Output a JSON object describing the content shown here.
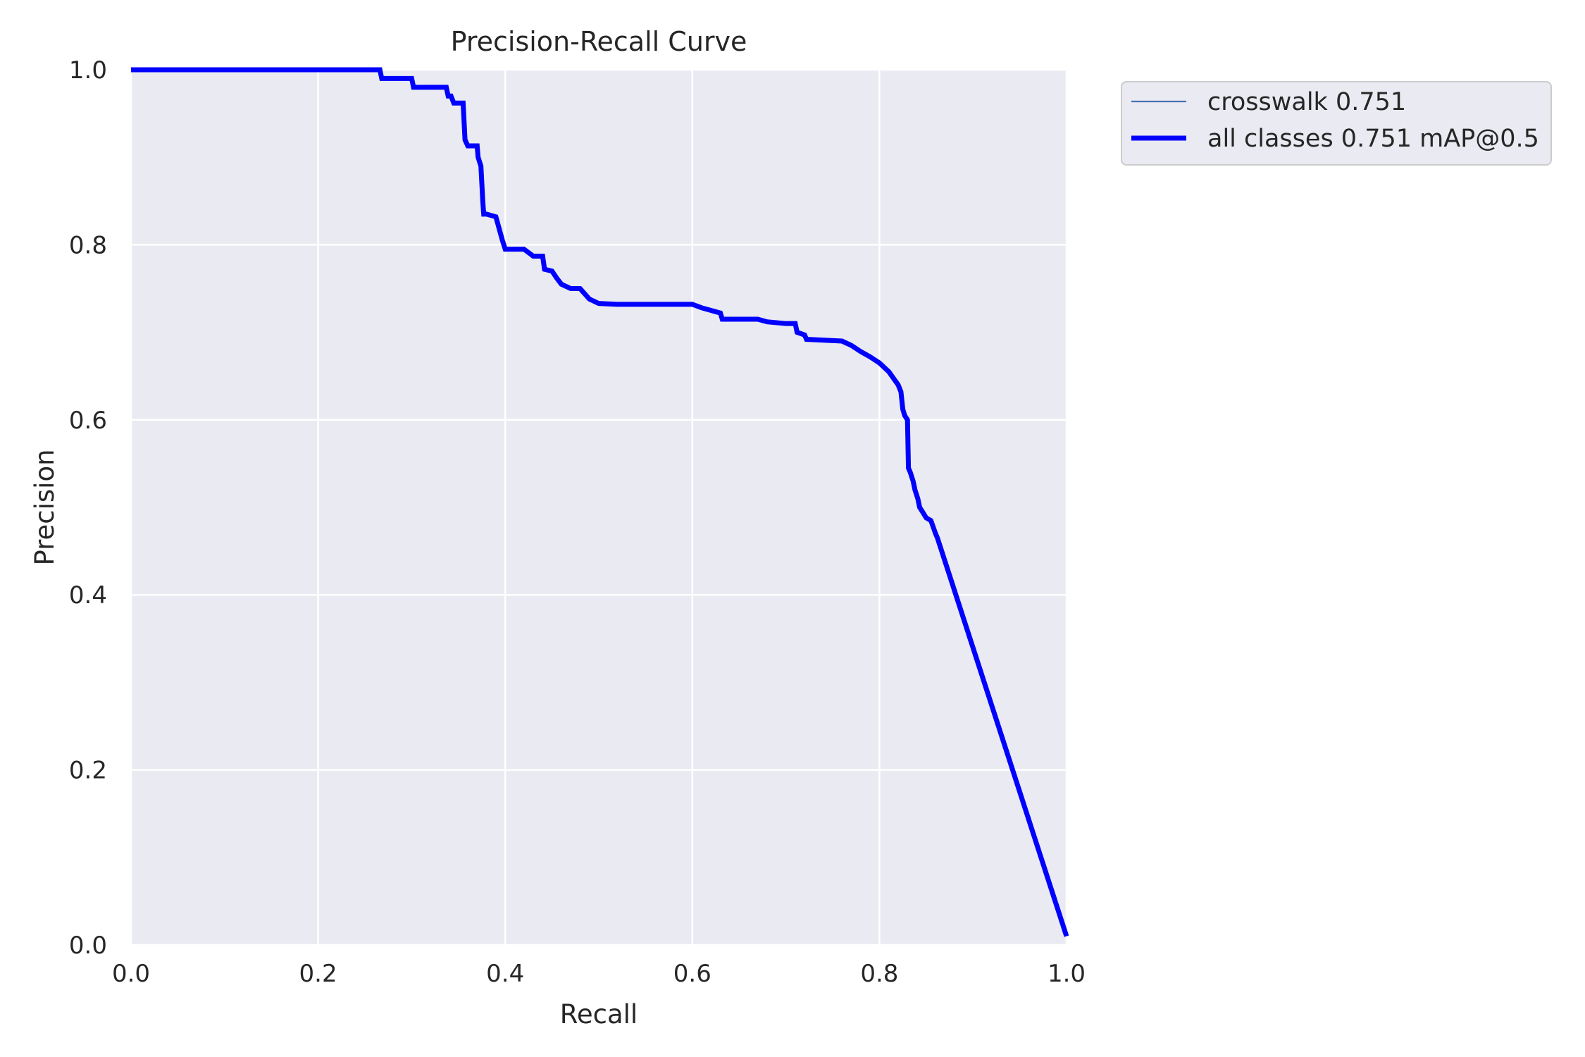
{
  "chart_data": {
    "type": "line",
    "title": "Precision-Recall Curve",
    "xlabel": "Recall",
    "ylabel": "Precision",
    "xlim": [
      0.0,
      1.0
    ],
    "ylim": [
      0.0,
      1.0
    ],
    "xticks": [
      "0.0",
      "0.2",
      "0.4",
      "0.6",
      "0.8",
      "1.0"
    ],
    "yticks": [
      "0.0",
      "0.2",
      "0.4",
      "0.6",
      "0.8",
      "1.0"
    ],
    "grid": true,
    "background": "#eaeaf2",
    "legend_position": "outside-top-right",
    "series": [
      {
        "name": "crosswalk 0.751",
        "color": "#4c72b0",
        "line_style": "thin",
        "x": [
          0.0,
          0.266,
          0.268,
          0.3,
          0.302,
          0.337,
          0.339,
          0.342,
          0.345,
          0.355,
          0.357,
          0.36,
          0.37,
          0.371,
          0.374,
          0.376,
          0.377,
          0.38,
          0.39,
          0.397,
          0.4,
          0.42,
          0.43,
          0.44,
          0.442,
          0.45,
          0.455,
          0.46,
          0.47,
          0.48,
          0.49,
          0.5,
          0.52,
          0.6,
          0.61,
          0.62,
          0.63,
          0.632,
          0.67,
          0.68,
          0.7,
          0.71,
          0.712,
          0.72,
          0.722,
          0.76,
          0.77,
          0.78,
          0.79,
          0.8,
          0.81,
          0.82,
          0.823,
          0.825,
          0.827,
          0.83,
          0.831,
          0.833,
          0.836,
          0.838,
          0.841,
          0.843,
          0.846,
          0.85,
          0.855,
          0.86,
          0.862,
          1.0
        ],
        "y": [
          1.0,
          1.0,
          0.99,
          0.99,
          0.98,
          0.98,
          0.97,
          0.97,
          0.962,
          0.962,
          0.92,
          0.913,
          0.913,
          0.9,
          0.89,
          0.85,
          0.835,
          0.835,
          0.832,
          0.805,
          0.795,
          0.795,
          0.787,
          0.787,
          0.772,
          0.77,
          0.762,
          0.755,
          0.75,
          0.75,
          0.738,
          0.733,
          0.732,
          0.732,
          0.728,
          0.725,
          0.722,
          0.715,
          0.715,
          0.712,
          0.71,
          0.71,
          0.7,
          0.697,
          0.692,
          0.69,
          0.685,
          0.678,
          0.672,
          0.665,
          0.655,
          0.64,
          0.632,
          0.612,
          0.605,
          0.6,
          0.545,
          0.54,
          0.53,
          0.52,
          0.51,
          0.5,
          0.495,
          0.488,
          0.485,
          0.47,
          0.465,
          0.01
        ]
      },
      {
        "name": "all classes 0.751 mAP@0.5",
        "color": "#0000ff",
        "line_style": "thick",
        "x": [
          0.0,
          0.266,
          0.268,
          0.3,
          0.302,
          0.337,
          0.339,
          0.342,
          0.345,
          0.355,
          0.357,
          0.36,
          0.37,
          0.371,
          0.374,
          0.376,
          0.377,
          0.38,
          0.39,
          0.397,
          0.4,
          0.42,
          0.43,
          0.44,
          0.442,
          0.45,
          0.455,
          0.46,
          0.47,
          0.48,
          0.49,
          0.5,
          0.52,
          0.6,
          0.61,
          0.62,
          0.63,
          0.632,
          0.67,
          0.68,
          0.7,
          0.71,
          0.712,
          0.72,
          0.722,
          0.76,
          0.77,
          0.78,
          0.79,
          0.8,
          0.81,
          0.82,
          0.823,
          0.825,
          0.827,
          0.83,
          0.831,
          0.833,
          0.836,
          0.838,
          0.841,
          0.843,
          0.846,
          0.85,
          0.855,
          0.86,
          0.862,
          1.0
        ],
        "y": [
          1.0,
          1.0,
          0.99,
          0.99,
          0.98,
          0.98,
          0.97,
          0.97,
          0.962,
          0.962,
          0.92,
          0.913,
          0.913,
          0.9,
          0.89,
          0.85,
          0.835,
          0.835,
          0.832,
          0.805,
          0.795,
          0.795,
          0.787,
          0.787,
          0.772,
          0.77,
          0.762,
          0.755,
          0.75,
          0.75,
          0.738,
          0.733,
          0.732,
          0.732,
          0.728,
          0.725,
          0.722,
          0.715,
          0.715,
          0.712,
          0.71,
          0.71,
          0.7,
          0.697,
          0.692,
          0.69,
          0.685,
          0.678,
          0.672,
          0.665,
          0.655,
          0.64,
          0.632,
          0.612,
          0.605,
          0.6,
          0.545,
          0.54,
          0.53,
          0.52,
          0.51,
          0.5,
          0.495,
          0.488,
          0.485,
          0.47,
          0.465,
          0.01
        ]
      }
    ]
  }
}
